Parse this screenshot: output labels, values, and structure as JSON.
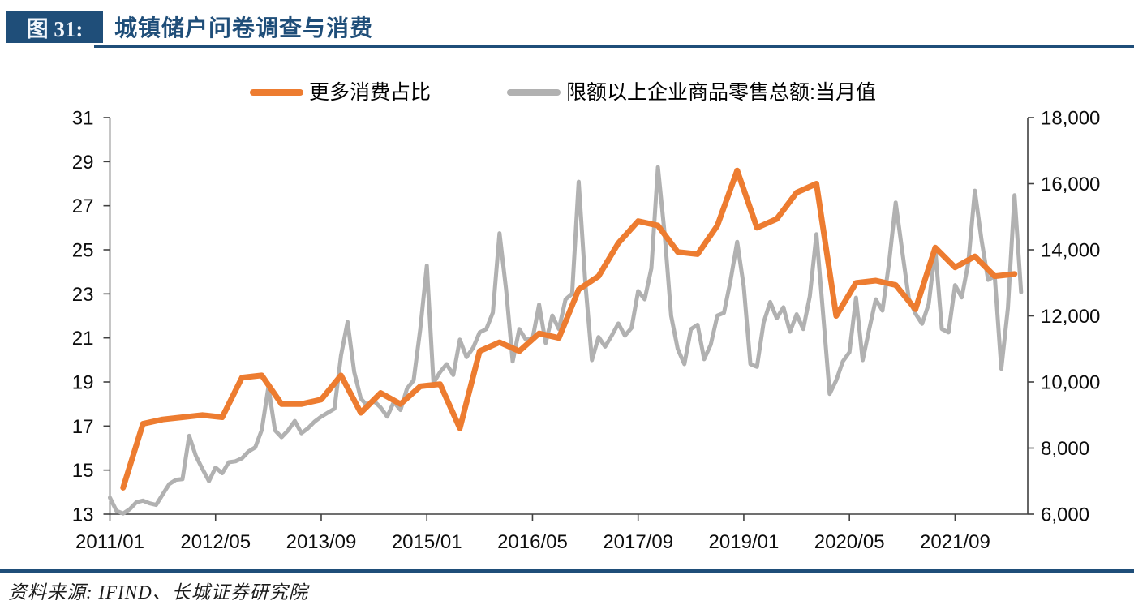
{
  "header": {
    "figure_label": "图 31:",
    "title": "城镇储户问卷调查与消费"
  },
  "legend": [
    {
      "label": "更多消费占比",
      "color": "#ED7C30"
    },
    {
      "label": "限额以上企业商品零售总额:当月值",
      "color": "#B1B1B1"
    }
  ],
  "footer": {
    "source": "资料来源: IFIND、长城证券研究院"
  },
  "colors": {
    "navy": "#1F4E79",
    "orange": "#ED7C30",
    "gray": "#B1B1B1",
    "axis": "#404040",
    "tick_text": "#0d0d0d"
  },
  "chart_data": {
    "type": "line",
    "title": "城镇储户问卷调查与消费",
    "grid": false,
    "legend_position": "top",
    "x_axis": {
      "tick_labels": [
        "2011/01",
        "2012/05",
        "2013/09",
        "2015/01",
        "2016/05",
        "2017/09",
        "2019/01",
        "2020/05",
        "2021/09"
      ],
      "tick_month_idx": [
        0,
        16,
        32,
        48,
        64,
        80,
        96,
        112,
        128
      ],
      "months_span": [
        0,
        138
      ],
      "month0": "2011/01"
    },
    "left_axis": {
      "min": 13,
      "max": 31,
      "tick_step": 2,
      "tick_labels": [
        "13",
        "15",
        "17",
        "19",
        "21",
        "23",
        "25",
        "27",
        "29",
        "31"
      ]
    },
    "right_axis": {
      "min": 6000,
      "max": 18000,
      "tick_step": 2000,
      "tick_labels": [
        "6,000",
        "8,000",
        "10,000",
        "12,000",
        "14,000",
        "16,000",
        "18,000"
      ]
    },
    "series": [
      {
        "name": "限额以上企业商品零售总额:当月值",
        "axis": "right",
        "color": "#B1B1B1",
        "stroke_width": 5,
        "month_start": 0,
        "values": [
          6500,
          6100,
          6020,
          6150,
          6360,
          6410,
          6330,
          6280,
          6600,
          6915,
          7040,
          7060,
          8370,
          7775,
          7370,
          7000,
          7410,
          7240,
          7570,
          7600,
          7690,
          7900,
          8020,
          8550,
          9850,
          8540,
          8330,
          8540,
          8820,
          8450,
          8600,
          8800,
          8950,
          9070,
          9190,
          10800,
          11815,
          10300,
          9500,
          9280,
          9420,
          9230,
          8950,
          9400,
          9150,
          9800,
          10050,
          11600,
          13520,
          9970,
          10300,
          10540,
          10210,
          11280,
          10750,
          11030,
          11500,
          11600,
          12100,
          14500,
          12800,
          10620,
          11600,
          11280,
          11300,
          12340,
          11180,
          12010,
          11600,
          12500,
          12670,
          16060,
          13000,
          10660,
          11360,
          11070,
          11400,
          11770,
          11400,
          11640,
          12750,
          12500,
          13440,
          16500,
          14500,
          12000,
          11000,
          10540,
          11600,
          11730,
          10690,
          11130,
          12010,
          12090,
          13080,
          14240,
          12890,
          10540,
          10460,
          11800,
          12420,
          11930,
          12260,
          11520,
          12050,
          11600,
          12590,
          14470,
          12090,
          9640,
          10050,
          10620,
          10900,
          12550,
          10660,
          11600,
          12500,
          12160,
          13600,
          15430,
          13950,
          12520,
          12070,
          11760,
          12360,
          14020,
          11600,
          11500,
          12930,
          12560,
          13600,
          15790,
          14300,
          13090,
          13200,
          10400,
          12230,
          15650,
          12720
        ]
      },
      {
        "name": "更多消费占比",
        "axis": "left",
        "color": "#ED7C30",
        "stroke_width": 7,
        "months": [
          2,
          5,
          8,
          11,
          14,
          17,
          20,
          23,
          26,
          29,
          32,
          35,
          38,
          41,
          44,
          47,
          50,
          53,
          56,
          59,
          62,
          65,
          68,
          71,
          74,
          77,
          80,
          83,
          86,
          89,
          92,
          95,
          98,
          101,
          104,
          107,
          110,
          113,
          116,
          119,
          122,
          125,
          128,
          131,
          134,
          137
        ],
        "values": [
          14.2,
          17.1,
          17.3,
          17.4,
          17.5,
          17.4,
          19.2,
          19.3,
          18.0,
          18.0,
          18.2,
          19.3,
          17.6,
          18.5,
          18.0,
          18.8,
          18.9,
          16.9,
          20.4,
          20.8,
          20.4,
          21.2,
          21.0,
          23.2,
          23.8,
          25.3,
          26.3,
          26.1,
          24.9,
          24.8,
          26.1,
          28.6,
          26.0,
          26.4,
          27.6,
          28.0,
          22.0,
          23.5,
          23.6,
          23.4,
          22.3,
          25.1,
          24.2,
          24.7,
          23.8,
          23.9
        ]
      }
    ]
  }
}
